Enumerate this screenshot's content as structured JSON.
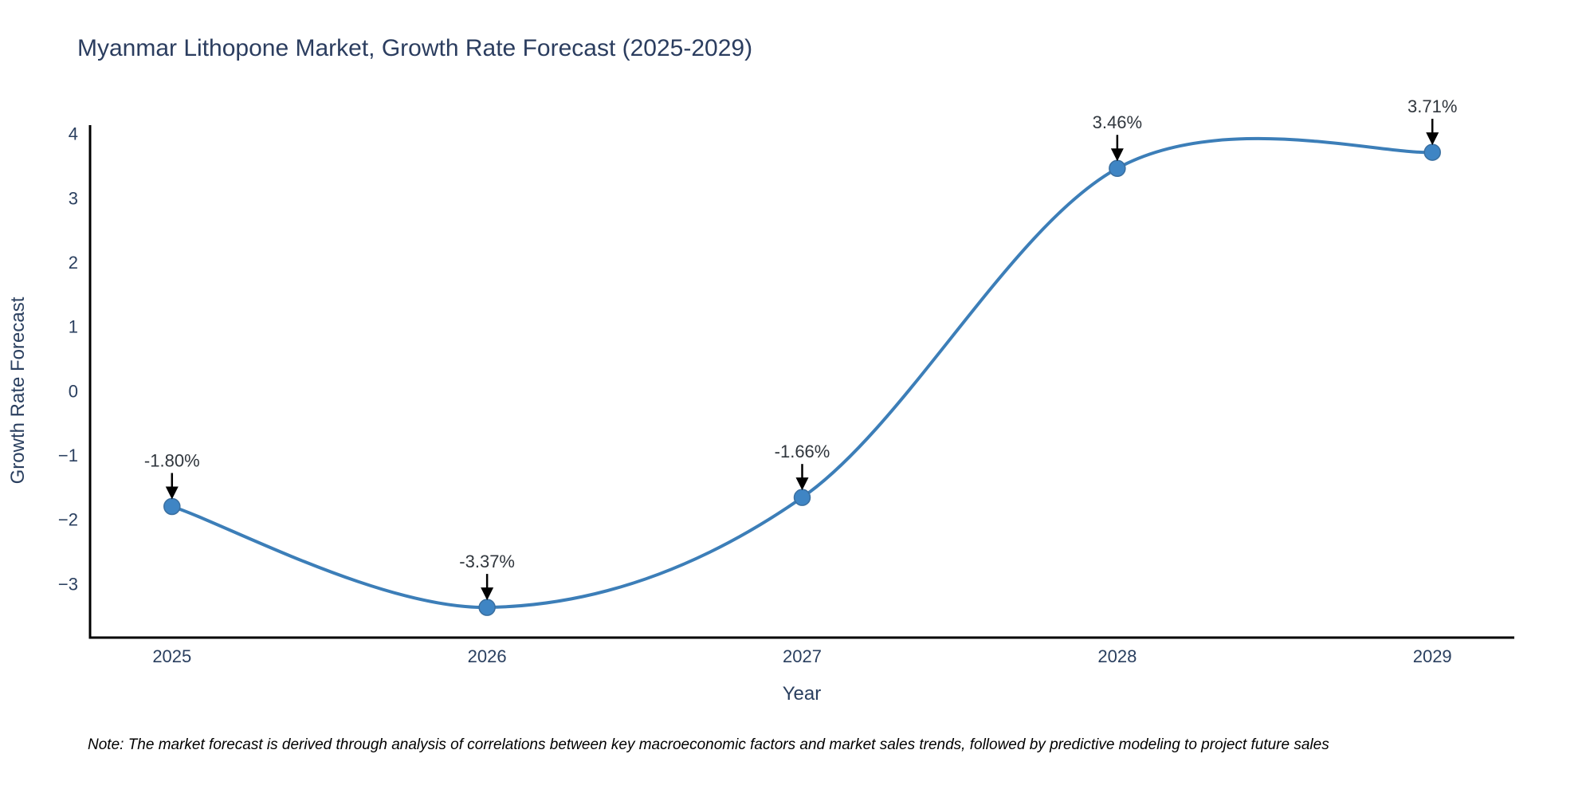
{
  "chart_data": {
    "type": "line",
    "title": "Myanmar Lithopone Market, Growth Rate Forecast (2025-2029)",
    "xlabel": "Year",
    "ylabel": "Growth Rate Forecast",
    "x": [
      2025,
      2026,
      2027,
      2028,
      2029
    ],
    "categories": [
      "2025",
      "2026",
      "2027",
      "2028",
      "2029"
    ],
    "series": [
      {
        "name": "Growth Rate Forecast",
        "values": [
          -1.8,
          -3.37,
          -1.66,
          3.46,
          3.71
        ]
      }
    ],
    "point_labels": [
      "-1.80%",
      "-3.37%",
      "-1.66%",
      "3.46%",
      "3.71%"
    ],
    "yticks": [
      4,
      3,
      2,
      1,
      0,
      -1,
      -2,
      -3
    ],
    "ylim": [
      -3.84,
      4.12
    ],
    "xlim": [
      2024.74,
      2029.26
    ],
    "line_shape": "spline",
    "grid": false,
    "legend_position": "none",
    "annotation_arrows": "black-down-arrow-to-point",
    "note": "Note: The market forecast is derived through analysis of correlations between key macroeconomic factors and market sales trends, followed by predictive modeling to project future sales",
    "colors": {
      "line": "#3c7eb8",
      "marker": "#3f85c4",
      "marker_edge": "#3a6fa0",
      "axis": "#000000",
      "tick_label": "#2a3f5f",
      "title": "#2b3d5f",
      "annotation_text": "#30363d",
      "arrow": "#000000",
      "background": "#ffffff"
    }
  }
}
